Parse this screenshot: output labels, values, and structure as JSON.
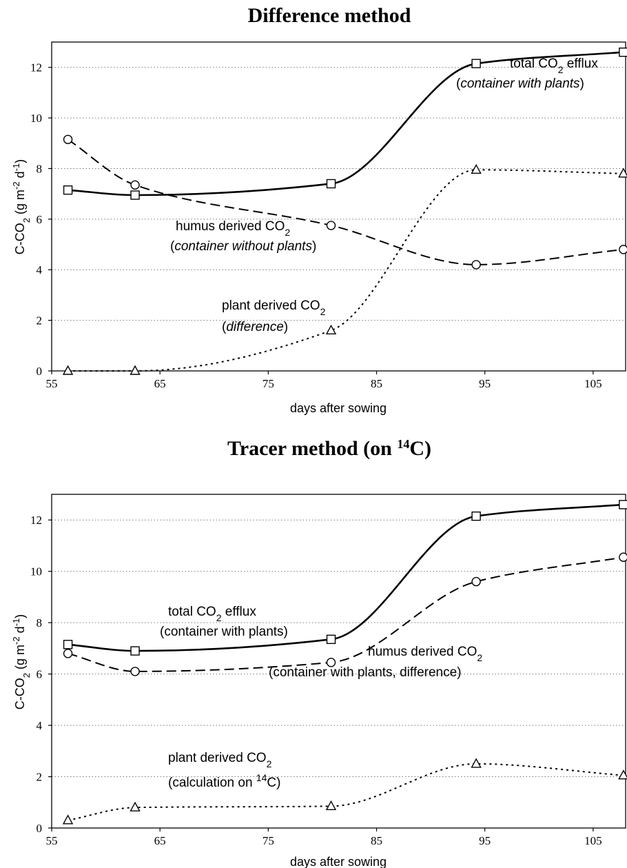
{
  "chart_data": [
    {
      "type": "line",
      "title": "Difference method",
      "xlabel": "days after sowing",
      "ylabel": "C-CO2 (g m-2 d-1)",
      "xlim": [
        55,
        108
      ],
      "ylim": [
        0,
        13
      ],
      "xticks": [
        55,
        65,
        75,
        85,
        95,
        105
      ],
      "yticks": [
        0,
        2,
        4,
        6,
        8,
        10,
        12
      ],
      "grid": "horizontal dotted",
      "x": [
        56.5,
        62.7,
        80.8,
        94.2,
        107.8
      ],
      "series": [
        {
          "name": "total CO2 efflux (container with plants)",
          "marker": "square",
          "dash": "solid",
          "values": [
            7.15,
            6.95,
            7.4,
            12.15,
            12.6
          ],
          "annotation": [
            {
              "pre": "total CO",
              "sub": "2",
              "post": " efflux"
            },
            {
              "pre": "(",
              "it": "container with plants",
              "post": ")"
            }
          ]
        },
        {
          "name": "humus derived CO2 (container without plants)",
          "marker": "circle",
          "dash": "dashed",
          "values": [
            9.15,
            7.35,
            5.75,
            4.2,
            4.8
          ],
          "annotation": [
            {
              "pre": "humus derived CO",
              "sub": "2",
              "post": ""
            },
            {
              "pre": "(",
              "it": "container without plants",
              "post": ")"
            }
          ]
        },
        {
          "name": "plant derived CO2 (difference)",
          "marker": "triangle",
          "dash": "dotted",
          "values": [
            0.0,
            0.0,
            1.6,
            7.95,
            7.8
          ],
          "annotation": [
            {
              "pre": "plant derived CO",
              "sub": "2",
              "post": ""
            },
            {
              "pre": "(",
              "it": "difference",
              "post": ")"
            }
          ]
        }
      ]
    },
    {
      "type": "line",
      "title": "Tracer method (on 14C)",
      "xlabel": "days after sowing",
      "ylabel": "C-CO2 (g m-2 d-1)",
      "xlim": [
        55,
        108
      ],
      "ylim": [
        0,
        13
      ],
      "xticks": [
        55,
        65,
        75,
        85,
        95,
        105
      ],
      "yticks": [
        0,
        2,
        4,
        6,
        8,
        10,
        12
      ],
      "grid": "horizontal dotted",
      "x": [
        56.5,
        62.7,
        80.8,
        94.2,
        107.8
      ],
      "series": [
        {
          "name": "total CO2 efflux (container with plants)",
          "marker": "square",
          "dash": "solid",
          "values": [
            7.15,
            6.9,
            7.35,
            12.15,
            12.6
          ],
          "annotation": [
            {
              "pre": "total CO",
              "sub": "2",
              "post": " efflux"
            },
            {
              "pre": "(container with plants)"
            }
          ]
        },
        {
          "name": "humus derived CO2 (container with plants, difference)",
          "marker": "circle",
          "dash": "dashed",
          "values": [
            6.8,
            6.1,
            6.45,
            9.6,
            10.55
          ],
          "annotation": [
            {
              "pre": "humus derived CO",
              "sub": "2",
              "post": ""
            },
            {
              "pre": "(container with plants, difference)"
            }
          ]
        },
        {
          "name": "plant derived CO2 (calculation on 14C)",
          "marker": "triangle",
          "dash": "dotted",
          "values": [
            0.3,
            0.8,
            0.85,
            2.5,
            2.05
          ],
          "annotation": [
            {
              "pre": "plant derived CO",
              "sub": "2",
              "post": ""
            },
            {
              "pre": "(calculation on ",
              "sup": "14",
              "post": "C)"
            }
          ]
        }
      ]
    }
  ]
}
